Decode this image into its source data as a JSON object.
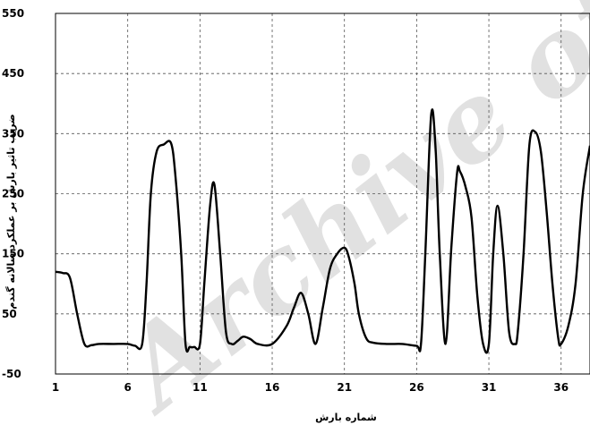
{
  "chart_data": {
    "type": "line",
    "title": "",
    "xlabel": "شماره بارش",
    "ylabel": "ضریب تاثیر بارش بر عملکرد سالانه گندم",
    "xlim": [
      1,
      38
    ],
    "ylim": [
      -50,
      550
    ],
    "x_ticks": [
      1,
      6,
      11,
      16,
      21,
      26,
      31,
      36
    ],
    "y_ticks": [
      -50,
      50,
      150,
      250,
      350,
      450,
      550
    ],
    "grid": true,
    "legend": "none",
    "series": [
      {
        "color": "#000000",
        "x": [
          1,
          1.5,
          2,
          2.5,
          3,
          3.5,
          4,
          5,
          6,
          6.5,
          7,
          7.3,
          7.6,
          8,
          8.5,
          9,
          9.3,
          9.7,
          10,
          10.3,
          10.6,
          11,
          11.3,
          11.7,
          12,
          12.4,
          12.8,
          13.2,
          13.6,
          14,
          14.5,
          15,
          16,
          17,
          17.5,
          18,
          18.5,
          19,
          19.5,
          20,
          20.5,
          21,
          21.3,
          21.7,
          22,
          22.5,
          23,
          24,
          25,
          26,
          26.3,
          26.6,
          27,
          27.3,
          27.6,
          28,
          28.4,
          28.8,
          29,
          29.4,
          29.8,
          30.2,
          30.6,
          31,
          31.3,
          31.6,
          32,
          32.4,
          32.8,
          33,
          33.4,
          33.8,
          34.2,
          34.6,
          35,
          35.4,
          35.8,
          36,
          36.5,
          37,
          37.5,
          38
        ],
        "values": [
          120,
          118,
          110,
          50,
          0,
          -2,
          0,
          0,
          0,
          -3,
          0,
          100,
          250,
          320,
          332,
          334,
          280,
          150,
          0,
          -5,
          -5,
          0,
          100,
          230,
          265,
          150,
          20,
          0,
          5,
          12,
          8,
          0,
          0,
          30,
          60,
          85,
          50,
          0,
          60,
          125,
          150,
          160,
          145,
          100,
          50,
          10,
          2,
          0,
          0,
          -3,
          0,
          150,
          380,
          330,
          150,
          0,
          160,
          285,
          287,
          260,
          210,
          80,
          0,
          0,
          150,
          230,
          150,
          20,
          0,
          20,
          150,
          330,
          353,
          320,
          220,
          100,
          10,
          0,
          30,
          100,
          250,
          330
        ]
      }
    ]
  },
  "watermark": "Archive of SID"
}
